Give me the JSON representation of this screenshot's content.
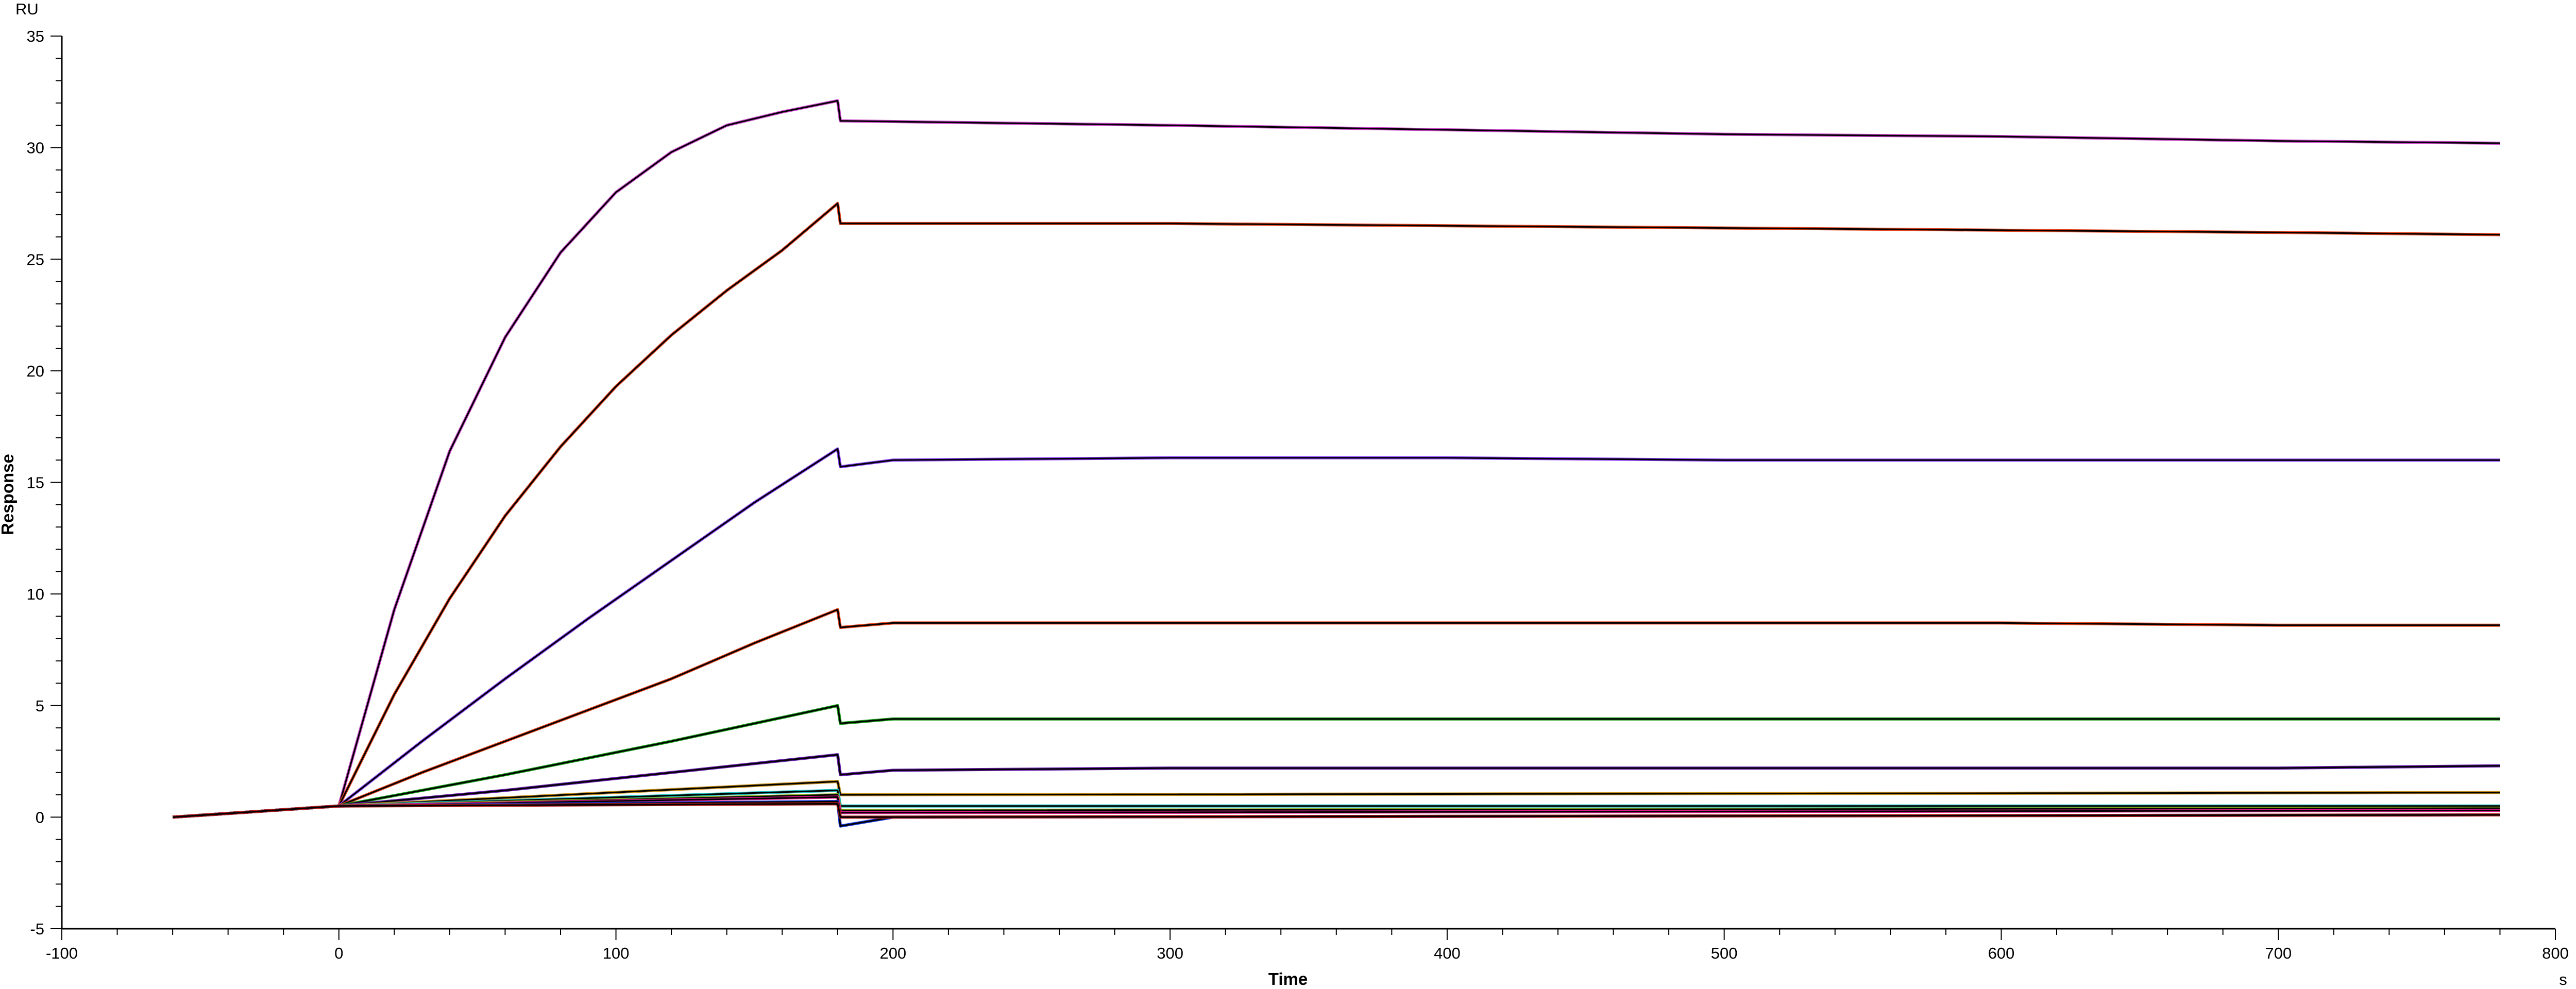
{
  "chart_data": {
    "type": "line",
    "title": "",
    "xlabel": "Time",
    "ylabel": "Response",
    "x_unit": "s",
    "y_unit": "RU",
    "xlim": [
      -100,
      800
    ],
    "ylim": [
      -5,
      35
    ],
    "x_ticks": [
      -100,
      0,
      100,
      200,
      300,
      400,
      500,
      600,
      700,
      800
    ],
    "y_ticks": [
      -5,
      0,
      5,
      10,
      15,
      20,
      25,
      30,
      35
    ],
    "grid": false,
    "legend": "none",
    "colors": {
      "fit": "#000000",
      "curves": [
        "#cc44cc",
        "#e8451e",
        "#8a3ffc",
        "#e8451e",
        "#1a9e1a",
        "#6a1fb0",
        "#c8901a",
        "#20c0c0",
        "#8ab21a",
        "#e01a8a",
        "#1a3ae0",
        "#b01a1a"
      ]
    },
    "series": [
      {
        "x": [
          -60,
          0,
          20,
          40,
          60,
          80,
          100,
          120,
          140,
          160,
          180,
          181,
          300,
          400,
          500,
          600,
          700,
          780
        ],
        "values": [
          0,
          0.5,
          9.3,
          16.4,
          21.5,
          25.3,
          28.0,
          29.8,
          31.0,
          31.6,
          32.1,
          31.2,
          31.0,
          30.8,
          30.6,
          30.5,
          30.3,
          30.2
        ]
      },
      {
        "x": [
          -60,
          0,
          20,
          40,
          60,
          80,
          100,
          120,
          140,
          160,
          180,
          181,
          300,
          400,
          500,
          600,
          700,
          780
        ],
        "values": [
          0,
          0.5,
          5.5,
          9.8,
          13.5,
          16.6,
          19.3,
          21.6,
          23.6,
          25.4,
          27.5,
          26.6,
          26.6,
          26.5,
          26.4,
          26.3,
          26.2,
          26.1
        ]
      },
      {
        "x": [
          -60,
          0,
          30,
          60,
          90,
          120,
          150,
          180,
          181,
          200,
          300,
          400,
          500,
          600,
          700,
          780
        ],
        "values": [
          0,
          0.5,
          3.4,
          6.2,
          8.9,
          11.5,
          14.1,
          16.5,
          15.7,
          16.0,
          16.1,
          16.1,
          16.0,
          16.0,
          16.0,
          16.0
        ]
      },
      {
        "x": [
          -60,
          0,
          30,
          60,
          90,
          120,
          150,
          180,
          181,
          200,
          300,
          400,
          500,
          600,
          700,
          780
        ],
        "values": [
          0,
          0.5,
          2.0,
          3.4,
          4.8,
          6.2,
          7.8,
          9.3,
          8.5,
          8.7,
          8.7,
          8.7,
          8.7,
          8.7,
          8.6,
          8.6
        ]
      },
      {
        "x": [
          -60,
          0,
          60,
          120,
          180,
          181,
          200,
          300,
          400,
          500,
          600,
          700,
          780
        ],
        "values": [
          0,
          0.5,
          1.9,
          3.4,
          5.0,
          4.2,
          4.4,
          4.4,
          4.4,
          4.4,
          4.4,
          4.4,
          4.4
        ]
      },
      {
        "x": [
          -60,
          0,
          60,
          120,
          180,
          181,
          200,
          300,
          400,
          500,
          600,
          700,
          780
        ],
        "values": [
          0,
          0.5,
          1.2,
          2.0,
          2.8,
          1.9,
          2.1,
          2.2,
          2.2,
          2.2,
          2.2,
          2.2,
          2.3
        ]
      },
      {
        "x": [
          -60,
          0,
          180,
          181,
          780
        ],
        "values": [
          0,
          0.5,
          1.6,
          1.0,
          1.1
        ]
      },
      {
        "x": [
          -60,
          0,
          180,
          181,
          780
        ],
        "values": [
          0,
          0.5,
          1.2,
          0.5,
          0.5
        ]
      },
      {
        "x": [
          -60,
          0,
          180,
          181,
          780
        ],
        "values": [
          0,
          0.5,
          1.0,
          0.3,
          0.4
        ]
      },
      {
        "x": [
          -60,
          0,
          180,
          181,
          780
        ],
        "values": [
          0,
          0.5,
          0.9,
          0.2,
          0.3
        ]
      },
      {
        "x": [
          -60,
          0,
          180,
          181,
          200,
          780
        ],
        "values": [
          0,
          0.5,
          0.7,
          -0.4,
          0.0,
          0.1
        ]
      },
      {
        "x": [
          -60,
          0,
          180,
          181,
          780
        ],
        "values": [
          0,
          0.5,
          0.6,
          0.0,
          0.1
        ]
      }
    ]
  }
}
